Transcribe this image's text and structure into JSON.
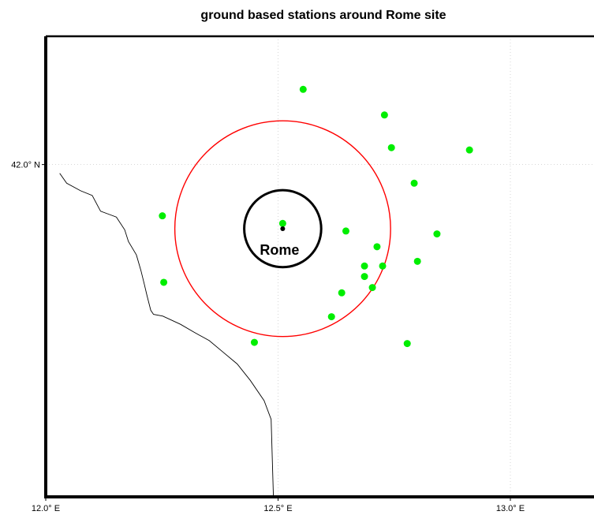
{
  "title": "ground based stations around Rome site",
  "chart_data": {
    "type": "scatter",
    "xlim": [
      12.0,
      13.18
    ],
    "ylim": [
      41.43,
      42.22
    ],
    "grid": true,
    "x_ticks": [
      {
        "value": 12.0,
        "label": "12.0° E"
      },
      {
        "value": 12.5,
        "label": "12.5° E"
      },
      {
        "value": 13.0,
        "label": "13.0° E"
      }
    ],
    "y_ticks": [
      {
        "value": 42.0,
        "label": "42.0° N"
      }
    ],
    "site": {
      "name": "Rome",
      "lon": 12.51,
      "lat": 41.89,
      "color": "#000000"
    },
    "rings": [
      {
        "radius_deg_lat": 0.066,
        "color": "#000000"
      },
      {
        "radius_deg_lat": 0.185,
        "color": "#ff0000"
      }
    ],
    "station_color": "#00ee00",
    "stations": [
      {
        "lon": 12.554,
        "lat": 42.129
      },
      {
        "lon": 12.729,
        "lat": 42.085
      },
      {
        "lon": 12.744,
        "lat": 42.029
      },
      {
        "lon": 12.912,
        "lat": 42.025
      },
      {
        "lon": 12.793,
        "lat": 41.968
      },
      {
        "lon": 12.251,
        "lat": 41.912
      },
      {
        "lon": 12.51,
        "lat": 41.899
      },
      {
        "lon": 12.646,
        "lat": 41.886
      },
      {
        "lon": 12.842,
        "lat": 41.881
      },
      {
        "lon": 12.713,
        "lat": 41.859
      },
      {
        "lon": 12.8,
        "lat": 41.834
      },
      {
        "lon": 12.686,
        "lat": 41.826
      },
      {
        "lon": 12.725,
        "lat": 41.826
      },
      {
        "lon": 12.686,
        "lat": 41.808
      },
      {
        "lon": 12.254,
        "lat": 41.798
      },
      {
        "lon": 12.703,
        "lat": 41.789
      },
      {
        "lon": 12.637,
        "lat": 41.78
      },
      {
        "lon": 12.615,
        "lat": 41.739
      },
      {
        "lon": 12.449,
        "lat": 41.695
      },
      {
        "lon": 12.778,
        "lat": 41.693
      }
    ],
    "coastline": [
      [
        12.03,
        41.985
      ],
      [
        12.045,
        41.968
      ],
      [
        12.075,
        41.955
      ],
      [
        12.1,
        41.947
      ],
      [
        12.118,
        41.92
      ],
      [
        12.135,
        41.915
      ],
      [
        12.152,
        41.91
      ],
      [
        12.17,
        41.888
      ],
      [
        12.178,
        41.868
      ],
      [
        12.195,
        41.845
      ],
      [
        12.205,
        41.818
      ],
      [
        12.212,
        41.795
      ],
      [
        12.218,
        41.775
      ],
      [
        12.226,
        41.75
      ],
      [
        12.232,
        41.743
      ],
      [
        12.252,
        41.74
      ],
      [
        12.29,
        41.726
      ],
      [
        12.32,
        41.712
      ],
      [
        12.352,
        41.698
      ],
      [
        12.382,
        41.678
      ],
      [
        12.412,
        41.658
      ],
      [
        12.44,
        41.63
      ],
      [
        12.47,
        41.595
      ],
      [
        12.485,
        41.563
      ],
      [
        12.49,
        41.43
      ]
    ]
  }
}
